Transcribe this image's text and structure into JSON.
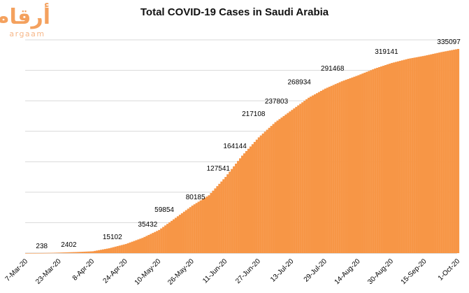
{
  "logo": {
    "arabic": "أرقام",
    "latin": "argaam"
  },
  "chart_data": {
    "type": "area",
    "title": "Total COVID-19 Cases in Saudi Arabia",
    "xlabel": "",
    "ylabel": "",
    "x_start": "2020-03-07",
    "x_end": "2020-10-01",
    "tick_labels": [
      "7-Mar-20",
      "23-Mar-20",
      "8-Apr-20",
      "24-Apr-20",
      "10-May-20",
      "26-May-20",
      "11-Jun-20",
      "27-Jun-20",
      "13-Jul-20",
      "29-Jul-20",
      "14-Aug-20",
      "30-Aug-20",
      "15-Sep-20",
      "1-Oct-20"
    ],
    "ylim": [
      0,
      350000
    ],
    "y_gridlines": [
      0,
      50000,
      100000,
      150000,
      200000,
      250000,
      300000,
      350000
    ],
    "y_tick_labels_shown": false,
    "grid": true,
    "color": "#f79646",
    "series": [
      {
        "name": "",
        "x": [
          "2020-03-07",
          "2020-03-15",
          "2020-03-23",
          "2020-03-31",
          "2020-04-08",
          "2020-04-16",
          "2020-04-24",
          "2020-05-02",
          "2020-05-10",
          "2020-05-18",
          "2020-05-26",
          "2020-06-03",
          "2020-06-11",
          "2020-06-19",
          "2020-06-27",
          "2020-07-05",
          "2020-07-13",
          "2020-07-21",
          "2020-07-29",
          "2020-08-06",
          "2020-08-14",
          "2020-08-22",
          "2020-08-30",
          "2020-09-07",
          "2020-09-15",
          "2020-09-23",
          "2020-10-01"
        ],
        "values": [
          5,
          100,
          900,
          1800,
          3000,
          8000,
          15000,
          25000,
          38000,
          58000,
          78000,
          95000,
          125000,
          160000,
          190000,
          215000,
          235000,
          255000,
          270000,
          282000,
          292000,
          303000,
          312000,
          319000,
          324000,
          330000,
          335097
        ]
      }
    ],
    "data_labels": [
      {
        "x": "2020-03-15",
        "value": 238,
        "text": "238"
      },
      {
        "x": "2020-03-28",
        "value": 2402,
        "text": "2402"
      },
      {
        "x": "2020-04-18",
        "value": 15102,
        "text": "15102"
      },
      {
        "x": "2020-05-05",
        "value": 35432,
        "text": "35432"
      },
      {
        "x": "2020-05-13",
        "value": 59854,
        "text": "59854"
      },
      {
        "x": "2020-05-28",
        "value": 80185,
        "text": "80185"
      },
      {
        "x": "2020-06-08",
        "value": 127541,
        "text": "127541"
      },
      {
        "x": "2020-06-16",
        "value": 164144,
        "text": "164144"
      },
      {
        "x": "2020-06-25",
        "value": 217108,
        "text": "217108"
      },
      {
        "x": "2020-07-06",
        "value": 237803,
        "text": "237803"
      },
      {
        "x": "2020-07-17",
        "value": 268934,
        "text": "268934"
      },
      {
        "x": "2020-08-02",
        "value": 291468,
        "text": "291468"
      },
      {
        "x": "2020-08-28",
        "value": 319141,
        "text": "319141"
      },
      {
        "x": "2020-09-27",
        "value": 335097,
        "text": "335097"
      }
    ]
  }
}
